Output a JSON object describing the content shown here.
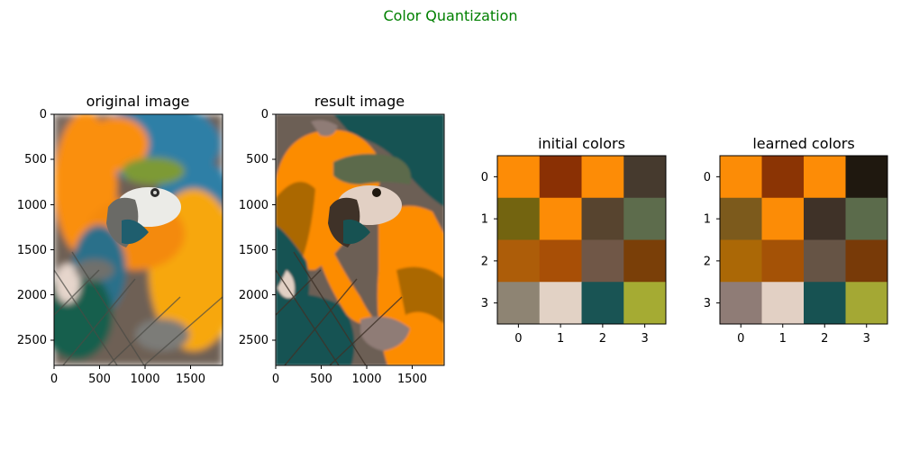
{
  "suptitle": "Color Quantization",
  "chart_data": [
    {
      "type": "image",
      "title": "original image",
      "xticks": [
        "0",
        "500",
        "1000",
        "1500"
      ],
      "yticks": [
        "0",
        "500",
        "1000",
        "1500",
        "2000",
        "2500"
      ],
      "xlim": [
        0,
        1850
      ],
      "ylim": [
        2780,
        0
      ]
    },
    {
      "type": "image",
      "title": "result image",
      "xticks": [
        "0",
        "500",
        "1000",
        "1500"
      ],
      "yticks": [
        "0",
        "500",
        "1000",
        "1500",
        "2000",
        "2500"
      ],
      "xlim": [
        0,
        1850
      ],
      "ylim": [
        2780,
        0
      ]
    },
    {
      "type": "heatmap",
      "title": "initial colors",
      "xticks": [
        "0",
        "1",
        "2",
        "3"
      ],
      "yticks": [
        "0",
        "1",
        "2",
        "3"
      ],
      "cells": [
        [
          "#fd8c06",
          "#8a3004",
          "#fd8c06",
          "#463a2e"
        ],
        [
          "#736410",
          "#fd8c06",
          "#57442f",
          "#5d6c4c"
        ],
        [
          "#ad5d09",
          "#a84f06",
          "#705747",
          "#7a3f08"
        ],
        [
          "#8e8473",
          "#e2d2c5",
          "#195454",
          "#a5ab33"
        ]
      ]
    },
    {
      "type": "heatmap",
      "title": "learned colors",
      "xticks": [
        "0",
        "1",
        "2",
        "3"
      ],
      "yticks": [
        "0",
        "1",
        "2",
        "3"
      ],
      "cells": [
        [
          "#fc8c06",
          "#8b3404",
          "#fd8c06",
          "#1f180f"
        ],
        [
          "#7c5a1c",
          "#fc8c06",
          "#3f3228",
          "#5b6b4b"
        ],
        [
          "#ab6806",
          "#a45206",
          "#665445",
          "#783a08"
        ],
        [
          "#8f7c76",
          "#e2d0c4",
          "#175252",
          "#a4a834"
        ]
      ]
    }
  ],
  "image_colors": {
    "original": {
      "background": "#6e6055",
      "blue": "#2f7fa6",
      "orange": "#fa8f10",
      "yellow": "#f7a70c",
      "green": "#3e6e44",
      "teal_net": "#195f4e",
      "face": "#e8e8e4",
      "grey": "#7c7c78",
      "dark": "#2b2b2b"
    },
    "result": {
      "background": "#6c5f54",
      "teal": "#175252",
      "orange": "#fc8c06",
      "darkorange": "#ab6806",
      "green": "#5b6b4b",
      "light": "#e2d0c4",
      "grey": "#8f7c76",
      "dark": "#3f3228",
      "olive": "#7c5a1c"
    }
  }
}
